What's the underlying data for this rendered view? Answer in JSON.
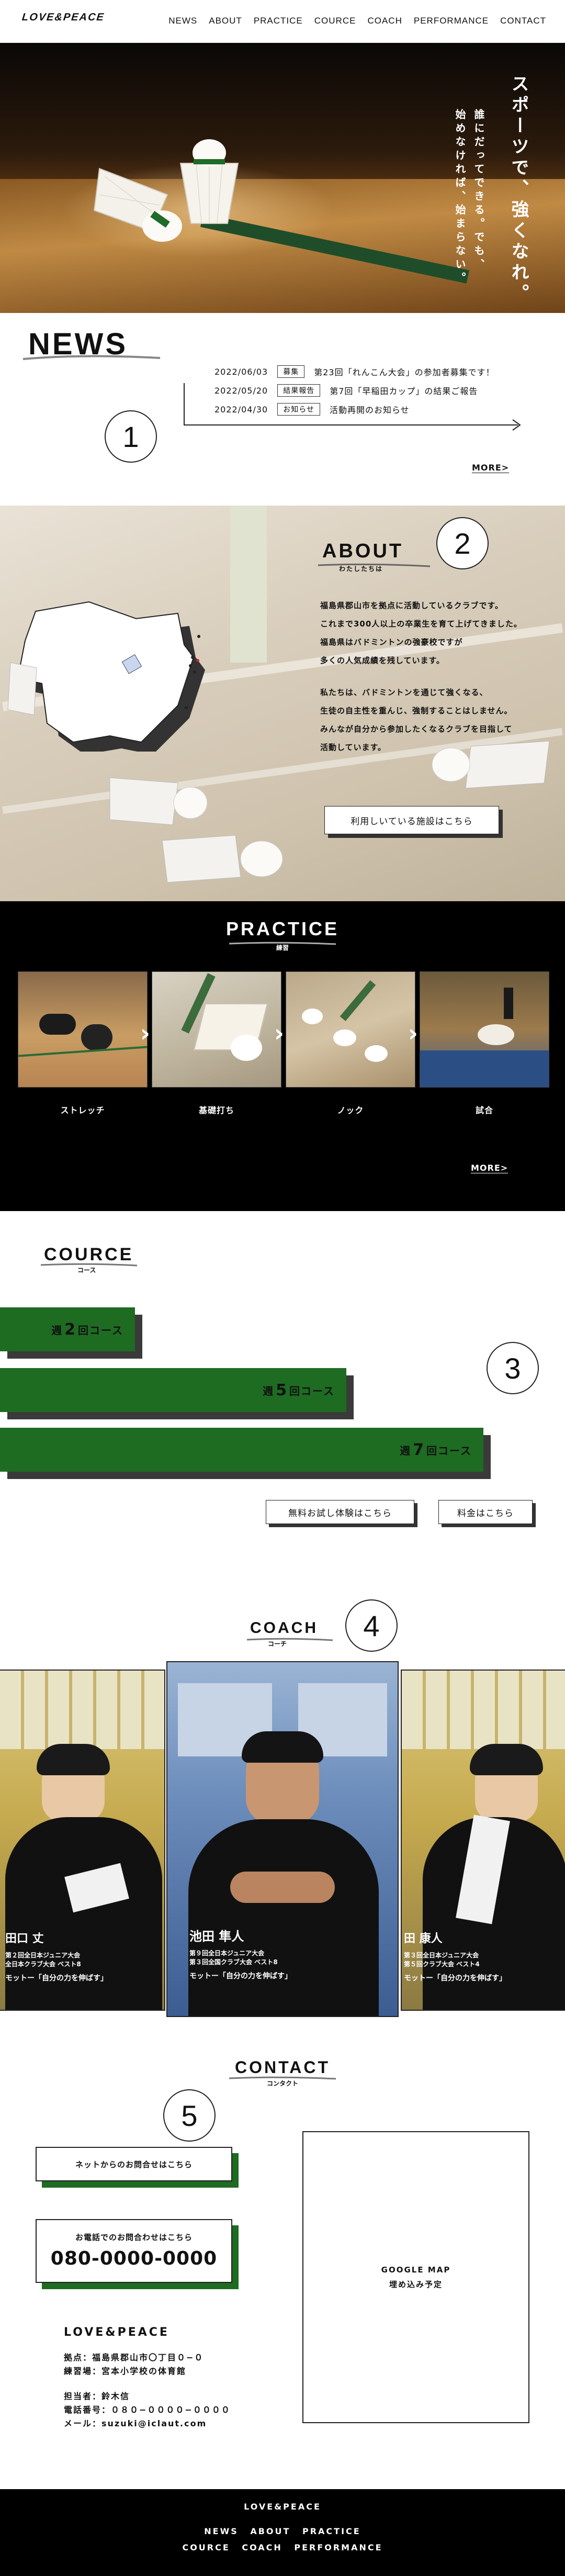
{
  "header": {
    "logo": "LOVE&PEACE",
    "nav": [
      "NEWS",
      "ABOUT",
      "PRACTICE",
      "COURCE",
      "COACH",
      "PERFORMANCE",
      "CONTACT"
    ]
  },
  "hero": {
    "line1": "スポーツで、強くなれ。",
    "line2": "誰にだってできる。でも、",
    "line3": "始めなければ、始まらない。"
  },
  "news": {
    "title": "NEWS",
    "items": [
      {
        "date": "2022/06/03",
        "badge": "募集",
        "text": "第23回「れんこん大会」の参加者募集です！"
      },
      {
        "date": "2022/05/20",
        "badge": "結果報告",
        "text": "第7回「早稲田カップ」の結果ご報告"
      },
      {
        "date": "2022/04/30",
        "badge": "お知らせ",
        "text": "活動再開のお知らせ"
      }
    ],
    "number": "1",
    "more": "MORE>"
  },
  "about": {
    "title": "ABOUT",
    "subtitle": "わたしたちは",
    "number": "2",
    "paragraph1": [
      "福島県郡山市を拠点に活動しているクラブです。",
      "これまで300人以上の卒業生を育て上げてきました。",
      "福島県はバドミントンの強豪校ですが",
      "多くの人気成績を残しています。"
    ],
    "paragraph2": [
      "私たちは、バドミントンを通じて強くなる、",
      "生徒の自主性を重んじ、強制することはしません。",
      "みんなが自分から参加したくなるクラブを目指して",
      "活動しています。"
    ],
    "button": "利用しいている施設はこちら"
  },
  "practice": {
    "title": "PRACTICE",
    "subtitle": "練習",
    "items": [
      "ストレッチ",
      "基礎打ち",
      "ノック",
      "試合"
    ],
    "more": "MORE>"
  },
  "cource": {
    "title": "COURCE",
    "subtitle": "コース",
    "number": "3",
    "bars": [
      {
        "prefix": "週",
        "num": "2",
        "suffix": "回コース"
      },
      {
        "prefix": "週",
        "num": "5",
        "suffix": "回コース"
      },
      {
        "prefix": "週",
        "num": "7",
        "suffix": "回コース"
      }
    ],
    "trial_button": "無料お試し体験はこちら",
    "price_button": "料金はこちら"
  },
  "coach": {
    "title": "COACH",
    "subtitle": "コーチ",
    "number": "4",
    "cards": [
      {
        "name": "田口 丈",
        "info1": "第２回全日本ジュニア大会",
        "info2": "全日本クラブ大会 ベスト8",
        "motto": "モットー「自分の力を伸ばす」"
      },
      {
        "name": "池田 隼人",
        "info1": "第９回全日本ジュニア大会",
        "info2": "第３回全国クラブ大会 ベスト8",
        "motto": "モットー「自分の力を伸ばす」"
      },
      {
        "name": "田 康人",
        "info1": "第３回全日本ジュニア大会",
        "info2": "第５回クラブ大会 ベスト4",
        "motto": "モットー「自分の力を伸ばす」"
      }
    ]
  },
  "contact": {
    "title": "CONTACT",
    "subtitle": "コンタクト",
    "number": "5",
    "net_button": "ネットからのお問合せはこちら",
    "phone_label": "お電話でのお問合わせはこちら",
    "phone": "080-0000-0000",
    "map_line1": "GOOGLE MAP",
    "map_line2": "埋め込み予定",
    "org": "LOVE&PEACE",
    "base": "拠点：福島県郡山市〇丁目０−０",
    "gym": "練習場：宮本小学校の体育館",
    "manager": "担当者：鈴木信",
    "tel": "電話番号：０８０−００００−００００",
    "mail": "メール：suzuki@iclaut.com"
  },
  "footer": {
    "logo": "LOVE&PEACE",
    "nav1": "NEWS ABOUT PRACTICE",
    "nav2": "COURCE COACH PERFORMANCE"
  },
  "colors": {
    "accent_green": "#1e6b22",
    "black": "#000000"
  }
}
